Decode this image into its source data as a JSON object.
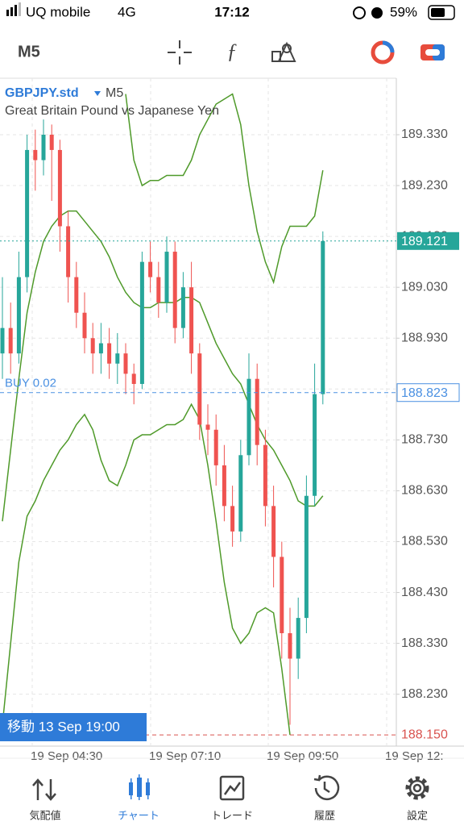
{
  "status_bar": {
    "carrier": "UQ mobile",
    "network": "4G",
    "time": "17:12",
    "battery": "59%"
  },
  "toolbar": {
    "timeframe": "M5"
  },
  "chart_data": {
    "type": "candlestick",
    "symbol": "GBPJPY.std",
    "timeframe": "M5",
    "description": "Great Britain Pound vs Japanese Yen",
    "candles": [
      {
        "o": 188.9,
        "h": 189.05,
        "l": 188.85,
        "c": 188.95
      },
      {
        "o": 188.95,
        "h": 189.0,
        "l": 188.86,
        "c": 188.9
      },
      {
        "o": 188.9,
        "h": 189.1,
        "l": 188.88,
        "c": 189.05
      },
      {
        "o": 189.05,
        "h": 189.33,
        "l": 189.02,
        "c": 189.3
      },
      {
        "o": 189.3,
        "h": 189.34,
        "l": 189.22,
        "c": 189.28
      },
      {
        "o": 189.28,
        "h": 189.36,
        "l": 189.25,
        "c": 189.33
      },
      {
        "o": 189.33,
        "h": 189.35,
        "l": 189.2,
        "c": 189.3
      },
      {
        "o": 189.3,
        "h": 189.32,
        "l": 189.1,
        "c": 189.15
      },
      {
        "o": 189.15,
        "h": 189.18,
        "l": 189.0,
        "c": 189.05
      },
      {
        "o": 189.05,
        "h": 189.08,
        "l": 188.95,
        "c": 188.98
      },
      {
        "o": 188.98,
        "h": 189.02,
        "l": 188.9,
        "c": 188.93
      },
      {
        "o": 188.93,
        "h": 188.96,
        "l": 188.86,
        "c": 188.9
      },
      {
        "o": 188.9,
        "h": 188.96,
        "l": 188.86,
        "c": 188.92
      },
      {
        "o": 188.92,
        "h": 188.95,
        "l": 188.85,
        "c": 188.88
      },
      {
        "o": 188.88,
        "h": 188.94,
        "l": 188.84,
        "c": 188.9
      },
      {
        "o": 188.9,
        "h": 188.92,
        "l": 188.82,
        "c": 188.86
      },
      {
        "o": 188.86,
        "h": 188.88,
        "l": 188.8,
        "c": 188.84
      },
      {
        "o": 188.84,
        "h": 189.1,
        "l": 188.83,
        "c": 189.08
      },
      {
        "o": 189.08,
        "h": 189.12,
        "l": 189.02,
        "c": 189.05
      },
      {
        "o": 189.05,
        "h": 189.08,
        "l": 188.97,
        "c": 189.0
      },
      {
        "o": 189.0,
        "h": 189.13,
        "l": 188.98,
        "c": 189.1
      },
      {
        "o": 189.1,
        "h": 189.12,
        "l": 188.92,
        "c": 188.95
      },
      {
        "o": 188.95,
        "h": 189.06,
        "l": 188.93,
        "c": 189.03
      },
      {
        "o": 189.03,
        "h": 189.08,
        "l": 188.86,
        "c": 188.9
      },
      {
        "o": 188.9,
        "h": 188.92,
        "l": 188.73,
        "c": 188.76
      },
      {
        "o": 188.76,
        "h": 188.8,
        "l": 188.7,
        "c": 188.75
      },
      {
        "o": 188.75,
        "h": 188.78,
        "l": 188.64,
        "c": 188.68
      },
      {
        "o": 188.68,
        "h": 188.72,
        "l": 188.57,
        "c": 188.6
      },
      {
        "o": 188.6,
        "h": 188.64,
        "l": 188.52,
        "c": 188.55
      },
      {
        "o": 188.55,
        "h": 188.73,
        "l": 188.53,
        "c": 188.7
      },
      {
        "o": 188.7,
        "h": 188.9,
        "l": 188.68,
        "c": 188.85
      },
      {
        "o": 188.85,
        "h": 188.88,
        "l": 188.68,
        "c": 188.72
      },
      {
        "o": 188.72,
        "h": 188.75,
        "l": 188.56,
        "c": 188.6
      },
      {
        "o": 188.6,
        "h": 188.64,
        "l": 188.44,
        "c": 188.5
      },
      {
        "o": 188.5,
        "h": 188.53,
        "l": 188.3,
        "c": 188.35
      },
      {
        "o": 188.35,
        "h": 188.4,
        "l": 188.17,
        "c": 188.3
      },
      {
        "o": 188.3,
        "h": 188.42,
        "l": 188.26,
        "c": 188.38
      },
      {
        "o": 188.38,
        "h": 188.66,
        "l": 188.35,
        "c": 188.62
      },
      {
        "o": 188.62,
        "h": 188.88,
        "l": 188.6,
        "c": 188.82
      },
      {
        "o": 188.82,
        "h": 189.14,
        "l": 188.8,
        "c": 189.121
      }
    ],
    "series": [
      {
        "name": "Upper",
        "color": "#4f9a2a",
        "values": [
          null,
          null,
          null,
          null,
          null,
          null,
          null,
          null,
          null,
          null,
          null,
          null,
          null,
          null,
          null,
          189.41,
          189.28,
          189.23,
          189.24,
          189.24,
          189.25,
          189.25,
          189.25,
          189.28,
          189.33,
          189.36,
          189.39,
          189.4,
          189.41,
          189.35,
          189.23,
          189.14,
          189.08,
          189.04,
          189.11,
          189.15,
          189.15,
          189.15,
          189.17,
          189.26
        ]
      },
      {
        "name": "Middle",
        "color": "#4f9a2a",
        "values": [
          188.57,
          188.71,
          188.85,
          188.98,
          189.06,
          189.12,
          189.15,
          189.17,
          189.18,
          189.18,
          189.16,
          189.14,
          189.12,
          189.09,
          189.05,
          189.02,
          189.0,
          188.99,
          188.99,
          189.0,
          189.0,
          189.0,
          189.01,
          189.01,
          189.0,
          188.96,
          188.92,
          188.89,
          188.86,
          188.84,
          188.8,
          188.76,
          188.73,
          188.71,
          188.68,
          188.65,
          188.61,
          188.6,
          188.6,
          188.62
        ]
      },
      {
        "name": "Lower",
        "color": "#4f9a2a",
        "values": [
          188.17,
          188.33,
          188.49,
          188.58,
          188.61,
          188.65,
          188.68,
          188.71,
          188.73,
          188.76,
          188.78,
          188.75,
          188.69,
          188.65,
          188.64,
          188.68,
          188.73,
          188.74,
          188.74,
          188.75,
          188.76,
          188.76,
          188.77,
          188.8,
          188.77,
          188.68,
          188.57,
          188.45,
          188.36,
          188.33,
          188.35,
          188.39,
          188.4,
          188.39,
          188.28,
          188.15,
          null,
          null,
          null,
          null
        ]
      }
    ],
    "ylim": [
      188.128,
      189.441
    ],
    "yticks": [
      {
        "value": 189.33,
        "label": "189.330"
      },
      {
        "value": 189.23,
        "label": "189.230"
      },
      {
        "value": 189.13,
        "label": "189.130"
      },
      {
        "value": 189.03,
        "label": "189.030"
      },
      {
        "value": 188.93,
        "label": "188.930"
      },
      {
        "value": 188.83,
        "label": "188.830"
      },
      {
        "value": 188.73,
        "label": "188.730"
      },
      {
        "value": 188.63,
        "label": "188.630"
      },
      {
        "value": 188.53,
        "label": "188.530"
      },
      {
        "value": 188.43,
        "label": "188.430"
      },
      {
        "value": 188.33,
        "label": "188.330"
      },
      {
        "value": 188.23,
        "label": "188.230"
      }
    ],
    "x_labels": [
      "19 Sep 04:30",
      "19 Sep 07:10",
      "19 Sep 09:50",
      "19 Sep 12:"
    ],
    "current_price": 189.121,
    "buy_line": {
      "label": "BUY 0.02",
      "value": 188.823
    },
    "low_line": {
      "value": 188.15,
      "label": "188.150"
    },
    "goto": "移動 13 Sep 19:00",
    "grid": true
  },
  "nav": [
    "気配値",
    "チャート",
    "トレード",
    "履歴",
    "設定"
  ]
}
